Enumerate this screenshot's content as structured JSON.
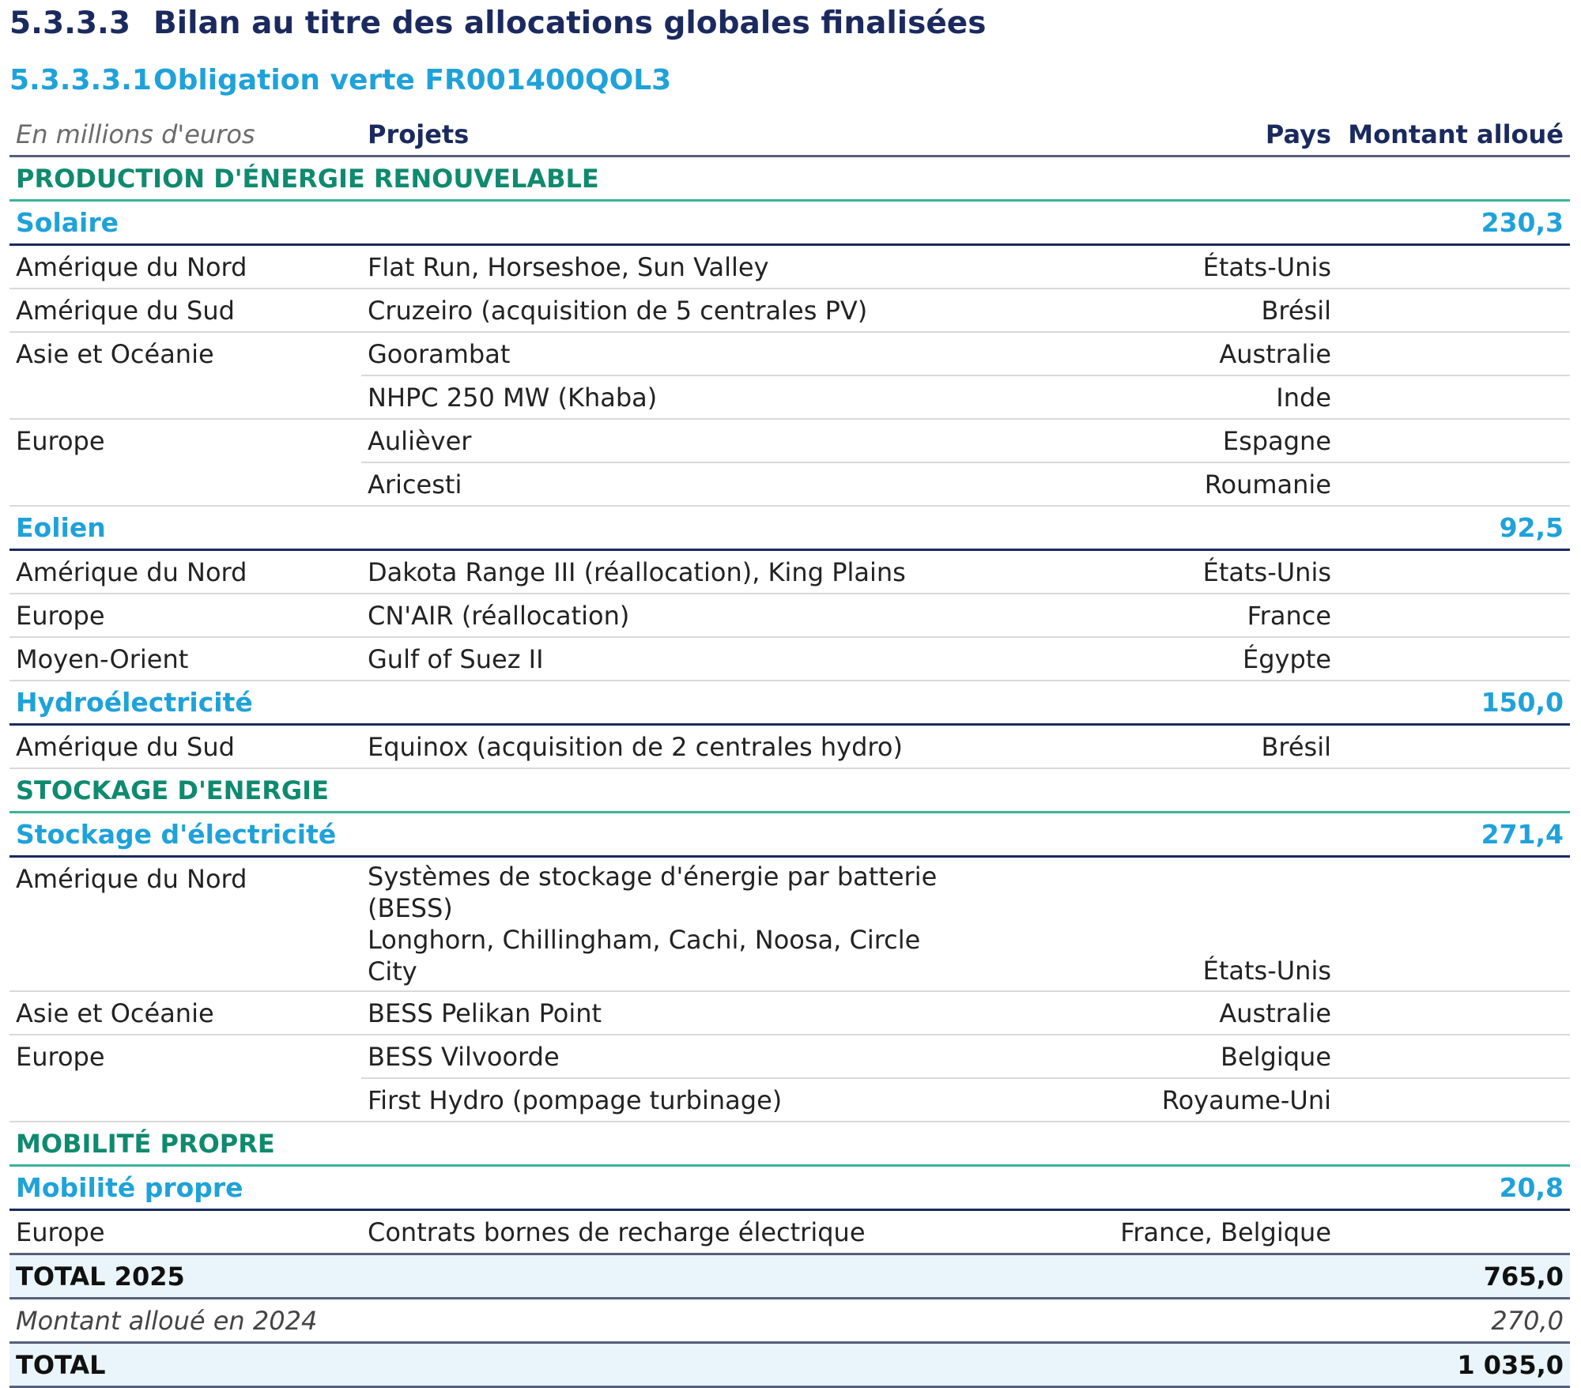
{
  "heading": {
    "number": "5.3.3.3",
    "title": "Bilan au titre des allocations globales finalisées"
  },
  "subheading": {
    "number": "5.3.3.3.1",
    "title": "Obligation verte FR001400QOL3"
  },
  "table": {
    "unit_label": "En millions d'euros",
    "headers": {
      "projects": "Projets",
      "country": "Pays",
      "amount": "Montant alloué"
    },
    "categories": [
      "PRODUCTION D'ÉNERGIE RENOUVELABLE",
      "STOCKAGE D'ENERGIE",
      "MOBILITÉ PROPRE"
    ],
    "subcategories": [
      {
        "name": "Solaire",
        "amount": "230,3"
      },
      {
        "name": "Eolien",
        "amount": "92,5"
      },
      {
        "name": "Hydroélectricité",
        "amount": "150,0"
      },
      {
        "name": "Stockage d'électricité",
        "amount": "271,4"
      },
      {
        "name": "Mobilité propre",
        "amount": "20,8"
      }
    ],
    "rows": [
      {
        "region": "Amérique du Nord",
        "project": "Flat Run, Horseshoe, Sun Valley",
        "country": "États-Unis"
      },
      {
        "region": "Amérique du Sud",
        "project": "Cruzeiro (acquisition de 5 centrales PV)",
        "country": "Brésil"
      },
      {
        "region": "Asie et Océanie",
        "project": "Goorambat",
        "country": "Australie"
      },
      {
        "region": "",
        "project": "NHPC 250 MW (Khaba)",
        "country": "Inde"
      },
      {
        "region": "Europe",
        "project": "Aulièver",
        "country": "Espagne"
      },
      {
        "region": "",
        "project": "Aricesti",
        "country": "Roumanie"
      },
      {
        "region": "Amérique du Nord",
        "project": "Dakota Range III (réallocation), King Plains",
        "country": "États-Unis"
      },
      {
        "region": "Europe",
        "project": "CN'AIR (réallocation)",
        "country": "France"
      },
      {
        "region": "Moyen-Orient",
        "project": "Gulf of Suez II",
        "country": "Égypte"
      },
      {
        "region": "Amérique du Sud",
        "project": "Equinox (acquisition de 2 centrales hydro)",
        "country": "Brésil"
      },
      {
        "region": "Amérique du Nord",
        "project_line1": "Systèmes de stockage d'énergie par batterie (BESS)",
        "project_line2": "Longhorn, Chillingham, Cachi, Noosa, Circle City",
        "country": "États-Unis"
      },
      {
        "region": "Asie et Océanie",
        "project": "BESS Pelikan Point",
        "country": "Australie"
      },
      {
        "region": "Europe",
        "project": "BESS Vilvoorde",
        "country": "Belgique"
      },
      {
        "region": "",
        "project": "First Hydro (pompage turbinage)",
        "country": "Royaume-Uni"
      },
      {
        "region": "Europe",
        "project": "Contrats bornes de recharge électrique",
        "country": "France, Belgique"
      }
    ],
    "total_2025": {
      "label": "TOTAL 2025",
      "amount": "765,0"
    },
    "prior": {
      "label": "Montant alloué en 2024",
      "amount": "270,0"
    },
    "total": {
      "label": "TOTAL",
      "amount": "1 035,0"
    }
  }
}
